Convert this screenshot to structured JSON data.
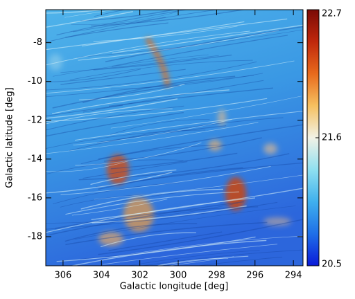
{
  "chart_data": {
    "type": "image",
    "xlabel": "Galactic longitude [deg]",
    "ylabel": "Galactic latitude [deg]",
    "xlim": [
      306.9,
      293.5
    ],
    "xticks": [
      306,
      304,
      302,
      300,
      298,
      296,
      294
    ],
    "ylim": [
      -19.5,
      -6.3
    ],
    "yticks": [
      -18,
      -16,
      -14,
      -12,
      -10,
      -8
    ],
    "colorbar": {
      "lim": [
        20.5,
        22.7
      ],
      "ticks": [
        20.5,
        21.6,
        22.7
      ],
      "colors": [
        "#0a1ad8",
        "#1f6fe8",
        "#3fb0ee",
        "#8fe0f0",
        "#f2f2e6",
        "#f6c060",
        "#e86a1c",
        "#c0280c",
        "#7a0a06"
      ]
    }
  }
}
